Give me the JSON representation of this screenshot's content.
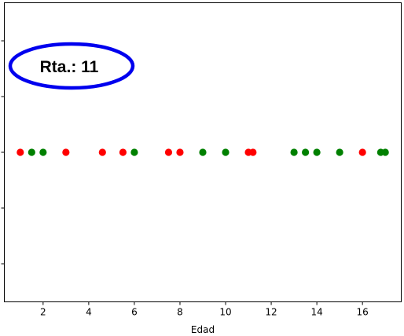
{
  "chart_data": {
    "type": "scatter",
    "xlabel": "Edad",
    "ylabel": "",
    "title": "",
    "xlim": [
      0.3,
      17.7
    ],
    "ylim": [
      -0.06,
      0.06
    ],
    "x_ticks": [
      2,
      4,
      6,
      8,
      10,
      12,
      14,
      16
    ],
    "grid": false,
    "series": [
      {
        "color": "#ff0000",
        "points": [
          {
            "x": 1.0,
            "y": 0
          },
          {
            "x": 3.0,
            "y": 0
          },
          {
            "x": 4.6,
            "y": 0
          },
          {
            "x": 5.5,
            "y": 0
          },
          {
            "x": 7.5,
            "y": 0
          },
          {
            "x": 8.0,
            "y": 0
          },
          {
            "x": 11.0,
            "y": 0
          },
          {
            "x": 11.2,
            "y": 0
          },
          {
            "x": 16.0,
            "y": 0
          }
        ]
      },
      {
        "color": "#008000",
        "points": [
          {
            "x": 1.5,
            "y": 0
          },
          {
            "x": 2.0,
            "y": 0
          },
          {
            "x": 6.0,
            "y": 0
          },
          {
            "x": 9.0,
            "y": 0
          },
          {
            "x": 10.0,
            "y": 0
          },
          {
            "x": 13.0,
            "y": 0
          },
          {
            "x": 13.5,
            "y": 0
          },
          {
            "x": 14.0,
            "y": 0
          },
          {
            "x": 15.0,
            "y": 0
          },
          {
            "x": 16.8,
            "y": 0
          },
          {
            "x": 17.0,
            "y": 0
          }
        ]
      }
    ]
  },
  "annotation": {
    "text": "Rta.: 11",
    "outline_color": "#0000ee"
  }
}
